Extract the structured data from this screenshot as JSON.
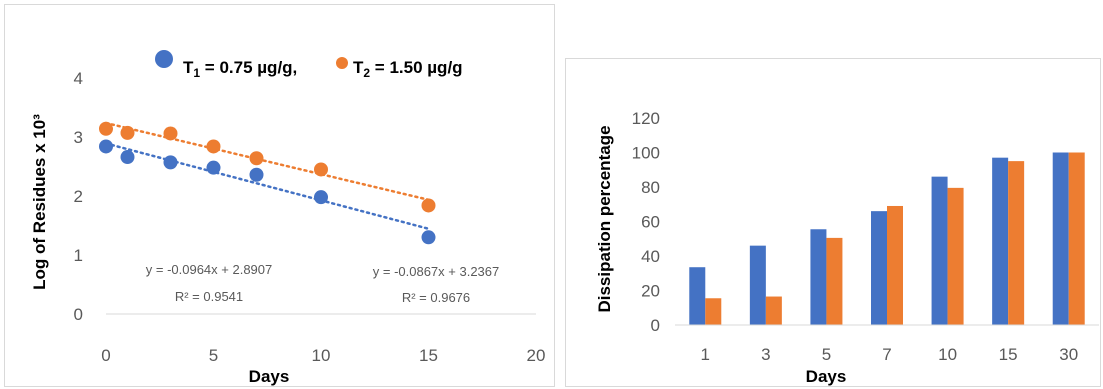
{
  "colors": {
    "series1": "#4472C4",
    "series2": "#ED7D31",
    "grid": "#d9d9d9",
    "axis": "#595959"
  },
  "chart_data": [
    {
      "type": "scatter",
      "xlabel": "Days",
      "ylabel": "Log of Residues x 10³",
      "xlim": [
        0,
        20
      ],
      "ylim": [
        0,
        4
      ],
      "xticks": [
        "0",
        "5",
        "10",
        "15",
        "20"
      ],
      "yticks": [
        "0",
        "1",
        "2",
        "3",
        "4"
      ],
      "grid": false,
      "legend": {
        "position": "top",
        "entries": [
          {
            "prefix": "T",
            "sub": "1",
            "suffix": " = 0.75 µg/g,",
            "color": "#4472C4"
          },
          {
            "prefix": "T",
            "sub": "2",
            "suffix": " = 1.50 µg/g",
            "color": "#ED7D31"
          }
        ]
      },
      "series": [
        {
          "name": "T1 = 0.75 µg/g",
          "color": "#4472C4",
          "x": [
            0,
            1,
            3,
            5,
            7,
            10,
            15
          ],
          "y": [
            2.84,
            2.66,
            2.57,
            2.48,
            2.36,
            1.98,
            1.3
          ],
          "trendline": {
            "slope": -0.0964,
            "intercept": 2.8907,
            "equation": "y = -0.0964x + 2.8907",
            "r2": "R² = 0.9541"
          }
        },
        {
          "name": "T2 = 1.50 µg/g",
          "color": "#ED7D31",
          "x": [
            0,
            1,
            3,
            5,
            7,
            10,
            15
          ],
          "y": [
            3.14,
            3.07,
            3.06,
            2.84,
            2.64,
            2.45,
            1.84
          ],
          "trendline": {
            "slope": -0.0867,
            "intercept": 3.2367,
            "equation": "y = -0.0867x + 3.2367",
            "r2": "R² = 0.9676"
          }
        }
      ]
    },
    {
      "type": "bar",
      "xlabel": "Days",
      "ylabel": "Dissipation percentage",
      "ylim": [
        0,
        120
      ],
      "yticks": [
        "0",
        "20",
        "40",
        "60",
        "80",
        "100",
        "120"
      ],
      "grid": false,
      "categories": [
        "1",
        "3",
        "5",
        "7",
        "10",
        "15",
        "30"
      ],
      "series": [
        {
          "color": "#4472C4",
          "values": [
            33.5,
            46,
            55.5,
            66,
            86,
            97,
            100
          ]
        },
        {
          "color": "#ED7D31",
          "values": [
            15.5,
            16.5,
            50.5,
            69,
            79.5,
            95,
            100
          ]
        }
      ]
    }
  ]
}
